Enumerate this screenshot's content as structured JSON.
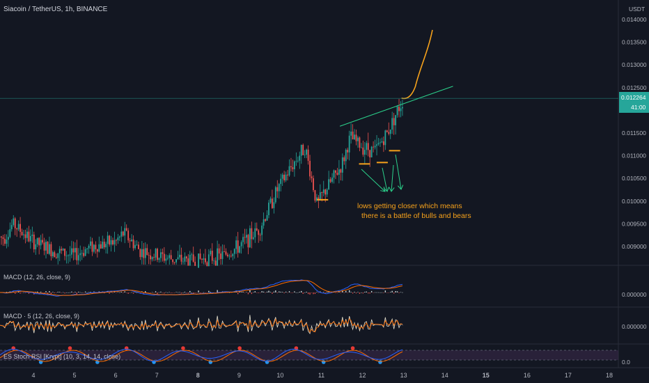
{
  "header": {
    "symbol_title": "Siacoin / TetherUS, 1h, BINANCE",
    "currency": "USDT"
  },
  "price_tag": {
    "price": "0.012264",
    "countdown": "41:00"
  },
  "colors": {
    "background": "#131722",
    "up_candle": "#26a69a",
    "down_candle": "#ef5350",
    "annotation": "#f7a21b",
    "trendline": "#2bd18b",
    "macd_line": "#2962ff",
    "signal_line": "#ff6d00",
    "stoch_k": "#2962ff",
    "stoch_d": "#ff6d00",
    "rsi_band_fill": "#3d2a4d"
  },
  "annotation": {
    "line1": "lows getting closer which means",
    "line2": "there is a battle of bulls and bears"
  },
  "panels": {
    "macd1_label": "MACD (12, 26, close, 9)",
    "macd1_value": "0.000000",
    "macd2_label": "MACD · 5 (12, 26, close, 9)",
    "macd2_value": "0.000000",
    "stoch_label": "ES Stoch RSI [Krypt] (10, 3, 14, 14, close)",
    "stoch_value": "0.0"
  },
  "chart_data": {
    "type": "candlestick",
    "title": "Siacoin / TetherUS, 1h, BINANCE",
    "y_axis_ticks": [
      "0.014000",
      "0.013500",
      "0.013000",
      "0.012500",
      "0.012000",
      "0.011500",
      "0.011000",
      "0.010500",
      "0.010000",
      "0.009500",
      "0.009000"
    ],
    "ylim": [
      0.0088,
      0.0142
    ],
    "x_axis_ticks": [
      "4",
      "5",
      "6",
      "7",
      "8",
      "9",
      "10",
      "11",
      "12",
      "13",
      "14",
      "15",
      "16",
      "17",
      "18"
    ],
    "bold_x_ticks": [
      "8",
      "15"
    ],
    "approx_close_path": [
      {
        "day": 3.3,
        "price": 0.0092
      },
      {
        "day": 3.5,
        "price": 0.0095
      },
      {
        "day": 4.0,
        "price": 0.0091
      },
      {
        "day": 4.5,
        "price": 0.0089
      },
      {
        "day": 5.0,
        "price": 0.0088
      },
      {
        "day": 5.4,
        "price": 0.009
      },
      {
        "day": 6.0,
        "price": 0.0091
      },
      {
        "day": 6.2,
        "price": 0.0093
      },
      {
        "day": 6.6,
        "price": 0.0089
      },
      {
        "day": 7.0,
        "price": 0.0088
      },
      {
        "day": 7.5,
        "price": 0.0087
      },
      {
        "day": 8.0,
        "price": 0.0087
      },
      {
        "day": 8.6,
        "price": 0.0088
      },
      {
        "day": 9.0,
        "price": 0.009
      },
      {
        "day": 9.5,
        "price": 0.0094
      },
      {
        "day": 9.9,
        "price": 0.0102
      },
      {
        "day": 10.3,
        "price": 0.0108
      },
      {
        "day": 10.6,
        "price": 0.0112
      },
      {
        "day": 10.9,
        "price": 0.0099
      },
      {
        "day": 11.0,
        "price": 0.0101
      },
      {
        "day": 11.5,
        "price": 0.0108
      },
      {
        "day": 11.7,
        "price": 0.0114
      },
      {
        "day": 12.0,
        "price": 0.0112
      },
      {
        "day": 12.3,
        "price": 0.0111
      },
      {
        "day": 12.6,
        "price": 0.0115
      },
      {
        "day": 12.8,
        "price": 0.0119
      },
      {
        "day": 13.0,
        "price": 0.01226
      }
    ],
    "drawn_objects": {
      "trendline": [
        {
          "day": 11.45,
          "price": 0.01165
        },
        {
          "day": 14.2,
          "price": 0.01253
        }
      ],
      "projection_curve_end": {
        "day": 13.7,
        "price": 0.01377
      },
      "low_markers": [
        {
          "day": 11.03,
          "price": 0.01003
        },
        {
          "day": 12.05,
          "price": 0.01082
        },
        {
          "day": 12.48,
          "price": 0.01085
        },
        {
          "day": 12.78,
          "price": 0.01111
        }
      ]
    }
  }
}
